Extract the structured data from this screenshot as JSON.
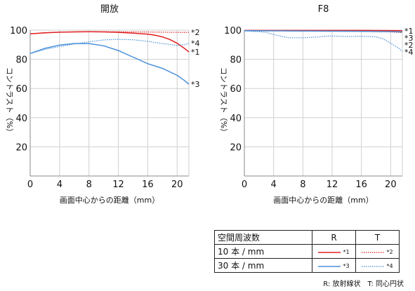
{
  "chart_data": [
    {
      "type": "line",
      "title": "開放",
      "xlabel": "画面中心からの距離（mm）",
      "ylabel": "コントラスト（%）",
      "xlim": [
        0,
        21.6
      ],
      "ylim": [
        0,
        100
      ],
      "xticks": [
        0,
        4,
        8,
        12,
        16,
        20
      ],
      "yticks": [
        20,
        40,
        60,
        80,
        100
      ],
      "grid": true,
      "series": [
        {
          "name": "*1",
          "color": "#e02020",
          "dash": "solid",
          "x": [
            0,
            2,
            4,
            6,
            8,
            10,
            12,
            14,
            16,
            17,
            18,
            19,
            20,
            21,
            21.6
          ],
          "y": [
            97.5,
            98.2,
            98.6,
            98.8,
            98.9,
            98.8,
            98.5,
            98.0,
            97.2,
            96.5,
            95.4,
            93.6,
            91.0,
            87.5,
            85.0
          ]
        },
        {
          "name": "*2",
          "color": "#e02020",
          "dash": "dotted",
          "x": [
            0,
            4,
            8,
            12,
            16,
            18,
            20,
            21,
            21.6
          ],
          "y": [
            97.5,
            98.6,
            99.0,
            98.9,
            98.7,
            98.6,
            98.5,
            98.5,
            98.5
          ]
        },
        {
          "name": "*3",
          "color": "#4a90d9",
          "dash": "solid",
          "x": [
            0,
            2,
            4,
            6,
            8,
            10,
            12,
            14,
            16,
            18,
            20,
            21,
            21.6
          ],
          "y": [
            84.0,
            87.5,
            89.8,
            90.8,
            90.8,
            89.3,
            86.0,
            81.5,
            77.0,
            73.8,
            69.0,
            65.5,
            63.0
          ]
        },
        {
          "name": "*4",
          "color": "#4a90d9",
          "dash": "dotted",
          "x": [
            0,
            2,
            4,
            6,
            8,
            10,
            12,
            14,
            16,
            18,
            20,
            21,
            21.6
          ],
          "y": [
            84.0,
            86.8,
            88.8,
            90.5,
            92.0,
            93.3,
            93.7,
            93.4,
            92.3,
            90.8,
            89.5,
            90.0,
            91.0
          ]
        }
      ],
      "series_labels_order": [
        "*2",
        "*4",
        "*1",
        "*3"
      ]
    },
    {
      "type": "line",
      "title": "F8",
      "xlabel": "画面中心からの距離（mm）",
      "ylabel": "コントラスト（%）",
      "xlim": [
        0,
        21.6
      ],
      "ylim": [
        0,
        100
      ],
      "xticks": [
        0,
        4,
        8,
        12,
        16,
        20
      ],
      "yticks": [
        20,
        40,
        60,
        80,
        100
      ],
      "grid": true,
      "series": [
        {
          "name": "*1",
          "color": "#e02020",
          "dash": "solid",
          "x": [
            0,
            4,
            8,
            12,
            16,
            20,
            21.6
          ],
          "y": [
            99.8,
            99.8,
            99.8,
            99.8,
            99.8,
            99.7,
            99.6
          ]
        },
        {
          "name": "*2",
          "color": "#e02020",
          "dash": "dotted",
          "x": [
            0,
            4,
            8,
            12,
            16,
            18,
            20,
            21,
            21.6
          ],
          "y": [
            99.7,
            99.6,
            99.4,
            99.4,
            99.2,
            99.0,
            98.8,
            98.5,
            98.2
          ]
        },
        {
          "name": "*3",
          "color": "#4a90d9",
          "dash": "solid",
          "x": [
            0,
            4,
            8,
            12,
            16,
            20,
            21.6
          ],
          "y": [
            99.6,
            99.5,
            99.4,
            99.3,
            99.2,
            99.0,
            98.8
          ]
        },
        {
          "name": "*4",
          "color": "#4a90d9",
          "dash": "dotted",
          "x": [
            0,
            2,
            3,
            4,
            5,
            6,
            8,
            10,
            11,
            12,
            13,
            14,
            16,
            18,
            19,
            20,
            21,
            21.6
          ],
          "y": [
            99.4,
            99.0,
            98.4,
            97.0,
            95.8,
            94.8,
            94.8,
            95.3,
            95.8,
            96.0,
            95.8,
            95.6,
            95.8,
            95.5,
            94.0,
            91.0,
            88.0,
            85.5
          ]
        }
      ],
      "series_labels_order": [
        "*1",
        "*3",
        "*2",
        "*4"
      ]
    }
  ],
  "legend": {
    "header": {
      "label": "空間周波数",
      "r": "R",
      "t": "T"
    },
    "rows": [
      {
        "label": "10 本 / mm",
        "r_tag": "*1",
        "t_tag": "*2",
        "color": "#e02020"
      },
      {
        "label": "30 本 / mm",
        "r_tag": "*3",
        "t_tag": "*4",
        "color": "#4a90d9"
      }
    ]
  },
  "note": "R: 放射線状　T: 同心円状"
}
